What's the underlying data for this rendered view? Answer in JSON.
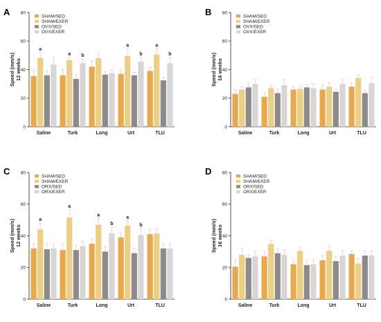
{
  "colors": {
    "sham_sed": "#E9A84A",
    "sham_exer": "#EDCF84",
    "gonad_sed": "#8C8A8A",
    "gonad_exer": "#D7D5D5",
    "error_bar": "#F3C4C6",
    "axis": "#222222"
  },
  "chart_data": [
    {
      "panel": "A",
      "type": "bar",
      "ylabel": [
        "Speed (mm/s)",
        "12 weeks"
      ],
      "ylim": [
        0,
        80
      ],
      "yticks": [
        0,
        20,
        40,
        60,
        80
      ],
      "categories": [
        "Saline",
        "Turk",
        "Long",
        "Urt",
        "TLU"
      ],
      "legend_position": "top-left",
      "series": [
        {
          "name": "SHAM/SED",
          "color_key": "sham_sed",
          "values": [
            35.5,
            36,
            42,
            37,
            39
          ],
          "errors": [
            4,
            4,
            4,
            3,
            3
          ]
        },
        {
          "name": "SHAM/EXER",
          "color_key": "sham_exer",
          "values": [
            48,
            46.5,
            48,
            49.5,
            50.5
          ],
          "errors": [
            4,
            2,
            4,
            5,
            4
          ]
        },
        {
          "name": "OVX/SED",
          "color_key": "gonad_sed",
          "values": [
            36,
            33.5,
            36.5,
            36,
            32.5
          ],
          "errors": [
            3,
            3,
            2,
            2,
            2
          ]
        },
        {
          "name": "OVX/EXER",
          "color_key": "gonad_exer",
          "values": [
            43.5,
            44.5,
            37.5,
            45.5,
            44.5
          ],
          "errors": [
            5,
            3,
            2,
            3,
            4
          ]
        }
      ],
      "annotations": [
        {
          "category": 0,
          "series": 1,
          "text": "a"
        },
        {
          "category": 1,
          "series": 1,
          "text": "a"
        },
        {
          "category": 1,
          "series": 3,
          "text": "b"
        },
        {
          "category": 3,
          "series": 1,
          "text": "a"
        },
        {
          "category": 3,
          "series": 3,
          "text": "b"
        },
        {
          "category": 4,
          "series": 1,
          "text": "a"
        },
        {
          "category": 4,
          "series": 3,
          "text": "b"
        }
      ]
    },
    {
      "panel": "B",
      "type": "bar",
      "ylabel": [
        "Speed (mm/s)",
        "16 weeks"
      ],
      "ylim": [
        0,
        80
      ],
      "yticks": [
        0,
        20,
        40,
        60,
        80
      ],
      "categories": [
        "Saline",
        "Turk",
        "Long",
        "Urt",
        "TLU"
      ],
      "legend_position": "top-left",
      "series": [
        {
          "name": "SHAM/SED",
          "color_key": "sham_sed",
          "values": [
            23,
            21,
            26,
            26,
            28
          ],
          "errors": [
            3,
            3,
            2,
            3,
            3
          ]
        },
        {
          "name": "SHAM/EXER",
          "color_key": "sham_exer",
          "values": [
            26,
            27,
            26.5,
            28,
            34
          ],
          "errors": [
            2,
            2,
            2,
            3,
            2
          ]
        },
        {
          "name": "OVX/SED",
          "color_key": "gonad_sed",
          "values": [
            27.5,
            23.5,
            27.5,
            24.5,
            23.5
          ],
          "errors": [
            3,
            3,
            2,
            2,
            2
          ]
        },
        {
          "name": "OVX/EXER",
          "color_key": "gonad_exer",
          "values": [
            30,
            29,
            27,
            30,
            30.5
          ],
          "errors": [
            3,
            4,
            3,
            3,
            4
          ]
        }
      ],
      "annotations": []
    },
    {
      "panel": "C",
      "type": "bar",
      "ylabel": [
        "Speed (mm/s)",
        "12 weeks"
      ],
      "ylim": [
        0,
        80
      ],
      "yticks": [
        0,
        20,
        40,
        60,
        80
      ],
      "categories": [
        "Saline",
        "Turk",
        "Long",
        "Urt",
        "TLU"
      ],
      "legend_position": "top-left",
      "series": [
        {
          "name": "SHAM/SED",
          "color_key": "sham_sed",
          "values": [
            32,
            31,
            35,
            39,
            41
          ],
          "errors": [
            3,
            4,
            3,
            3,
            3
          ]
        },
        {
          "name": "SHAM/EXER",
          "color_key": "sham_exer",
          "values": [
            44,
            51.5,
            47,
            46.5,
            41.5
          ],
          "errors": [
            4,
            5,
            4,
            3,
            3
          ]
        },
        {
          "name": "ORX/SED",
          "color_key": "gonad_sed",
          "values": [
            31.5,
            31,
            30,
            29,
            32
          ],
          "errors": [
            4,
            3,
            3,
            3,
            3
          ]
        },
        {
          "name": "ORX/EXER",
          "color_key": "gonad_exer",
          "values": [
            32,
            33.5,
            41.5,
            40.5,
            32
          ],
          "errors": [
            3,
            3,
            4,
            4,
            3
          ]
        }
      ],
      "annotations": [
        {
          "category": 0,
          "series": 1,
          "text": "a"
        },
        {
          "category": 1,
          "series": 1,
          "text": "a"
        },
        {
          "category": 2,
          "series": 1,
          "text": "a"
        },
        {
          "category": 2,
          "series": 3,
          "text": "b"
        },
        {
          "category": 3,
          "series": 1,
          "text": "a"
        },
        {
          "category": 3,
          "series": 3,
          "text": "b"
        }
      ]
    },
    {
      "panel": "D",
      "type": "bar",
      "ylabel": [
        "Speed (mm/s)",
        "16 weeks"
      ],
      "ylim": [
        0,
        80
      ],
      "yticks": [
        0,
        20,
        40,
        60,
        80
      ],
      "categories": [
        "Saline",
        "Turk",
        "Long",
        "Urt",
        "TLU"
      ],
      "legend_position": "top-left",
      "series": [
        {
          "name": "SHAM/SED",
          "color_key": "sham_sed",
          "values": [
            20.5,
            27,
            22,
            24.5,
            28.5
          ],
          "errors": [
            4,
            3,
            3,
            3,
            2
          ]
        },
        {
          "name": "SHAM/EXER",
          "color_key": "sham_exer",
          "values": [
            28,
            35,
            30.5,
            30.5,
            22.5
          ],
          "errors": [
            4,
            2,
            2,
            3,
            3
          ]
        },
        {
          "name": "ORX/SED",
          "color_key": "gonad_sed",
          "values": [
            26,
            29,
            21.5,
            24,
            27.5
          ],
          "errors": [
            2,
            3,
            3,
            3,
            3
          ]
        },
        {
          "name": "ORX/EXER",
          "color_key": "gonad_exer",
          "values": [
            27,
            28,
            22,
            27.5,
            27.5
          ],
          "errors": [
            3,
            3,
            3,
            3,
            3
          ]
        }
      ],
      "annotations": []
    }
  ]
}
